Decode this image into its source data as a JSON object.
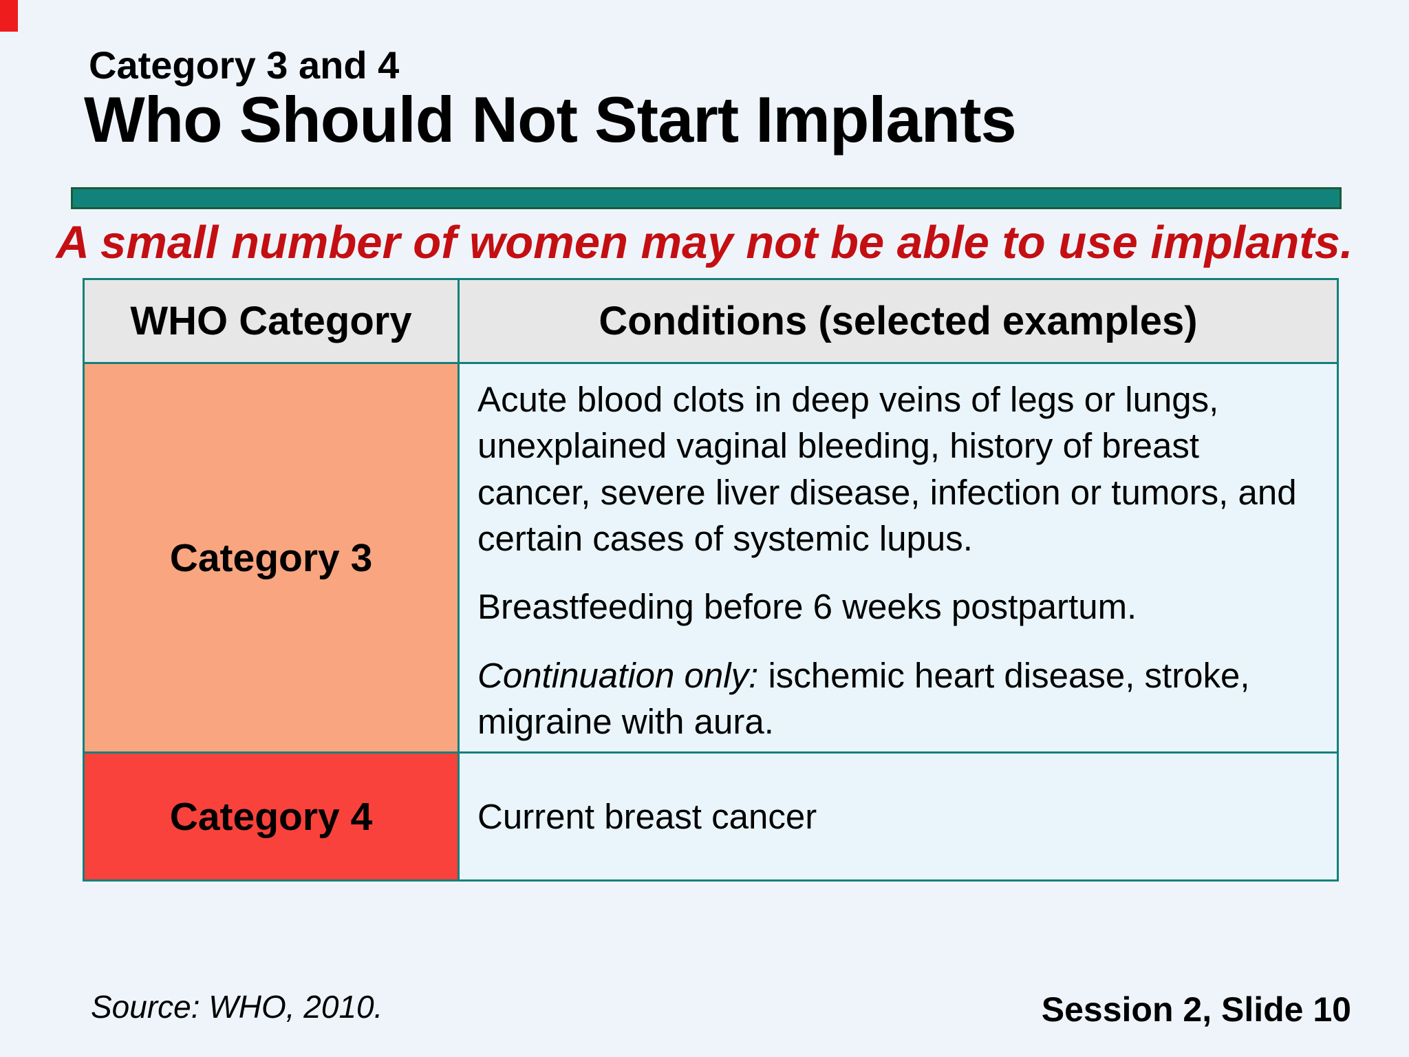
{
  "slide": {
    "kicker": "Category 3 and 4",
    "title": "Who Should Not Start Implants",
    "lead": "A small number of women may not be able to use implants.",
    "table": {
      "headers": [
        "WHO Category",
        "Conditions (selected examples)"
      ],
      "rows": [
        {
          "category": "Category 3",
          "paragraphs": [
            "Acute blood clots in deep veins of legs or lungs, unexplained vaginal bleeding, history of breast cancer, severe liver disease, infection or tumors, and certain cases of systemic lupus.",
            "Breastfeeding before 6 weeks postpartum."
          ],
          "continuation_label": "Continuation only:",
          "continuation_rest": " ischemic heart disease, stroke, migraine with aura."
        },
        {
          "category": "Category 4",
          "paragraphs": [
            "Current breast cancer"
          ]
        }
      ]
    },
    "footer": {
      "source": "Source: WHO, 2010.",
      "slide_number": "Session 2, Slide 10"
    }
  },
  "colors": {
    "background": "#eff4fb",
    "teal_accent": "#12837a",
    "teal_bar_border": "#1a5c3a",
    "table_border": "#13807b",
    "lead_red": "#c40f12",
    "category3_salmon": "#f9a57f",
    "category4_red": "#f9423c",
    "header_gray": "#e8e7e7",
    "condition_cell_blue": "#e9f5fa",
    "corner_red": "#ee1c1c"
  }
}
